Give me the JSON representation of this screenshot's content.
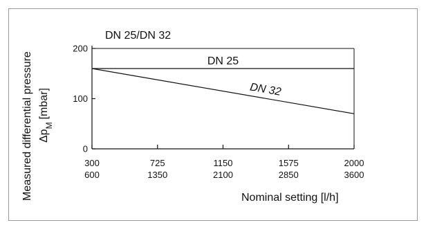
{
  "chart_data": {
    "type": "line",
    "subtitle": "DN 25/DN 32",
    "ylabel_line1": "Measured differential pressure",
    "ylabel_symbol": "Δp",
    "ylabel_subscript": "M",
    "ylabel_unit": "[mbar]",
    "xlabel": "Nominal setting [l/h]",
    "x_ticks_dn25": [
      "300",
      "725",
      "1150",
      "1575",
      "2000"
    ],
    "x_ticks_dn32": [
      "600",
      "1350",
      "2100",
      "2850",
      "3600"
    ],
    "y_ticks": [
      "0",
      "100",
      "200"
    ],
    "ylim": [
      0,
      200
    ],
    "x_index_range": [
      0,
      4
    ],
    "series": [
      {
        "name": "DN 25",
        "x_index": [
          0,
          4
        ],
        "values": [
          160,
          160
        ]
      },
      {
        "name": "DN 32",
        "x_index": [
          0,
          4
        ],
        "values": [
          160,
          70
        ]
      }
    ]
  }
}
